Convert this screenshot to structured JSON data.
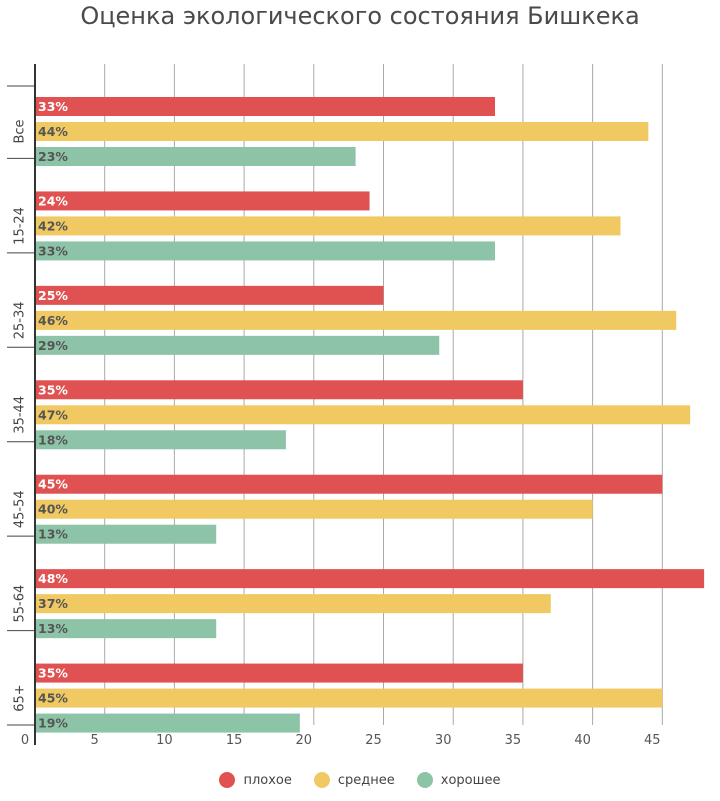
{
  "chart_data": {
    "type": "bar",
    "orientation": "horizontal",
    "title": "Оценка экологического состояния Бишкека",
    "categories": [
      "Все",
      "15-24",
      "25-34",
      "35-44",
      "45-54",
      "55-64",
      "65+"
    ],
    "series": [
      {
        "name": "плохое",
        "color": "#e05252",
        "values": [
          33,
          24,
          25,
          35,
          45,
          48,
          35
        ],
        "labels": [
          "33%",
          "24%",
          "25%",
          "35%",
          "45%",
          "48%",
          "35%"
        ]
      },
      {
        "name": "среднее",
        "color": "#f0c962",
        "values": [
          44,
          42,
          46,
          47,
          40,
          37,
          45
        ],
        "labels": [
          "44%",
          "42%",
          "46%",
          "47%",
          "40%",
          "37%",
          "45%"
        ]
      },
      {
        "name": "хорошее",
        "color": "#8dc4a7",
        "values": [
          23,
          33,
          29,
          18,
          13,
          13,
          19
        ],
        "labels": [
          "23%",
          "33%",
          "29%",
          "18%",
          "13%",
          "13%",
          "19%"
        ]
      }
    ],
    "xlim": [
      0,
      48
    ],
    "xticks": [
      0,
      5,
      10,
      15,
      20,
      25,
      30,
      35,
      40,
      45
    ],
    "grid": true,
    "legend": "bottom-center"
  }
}
